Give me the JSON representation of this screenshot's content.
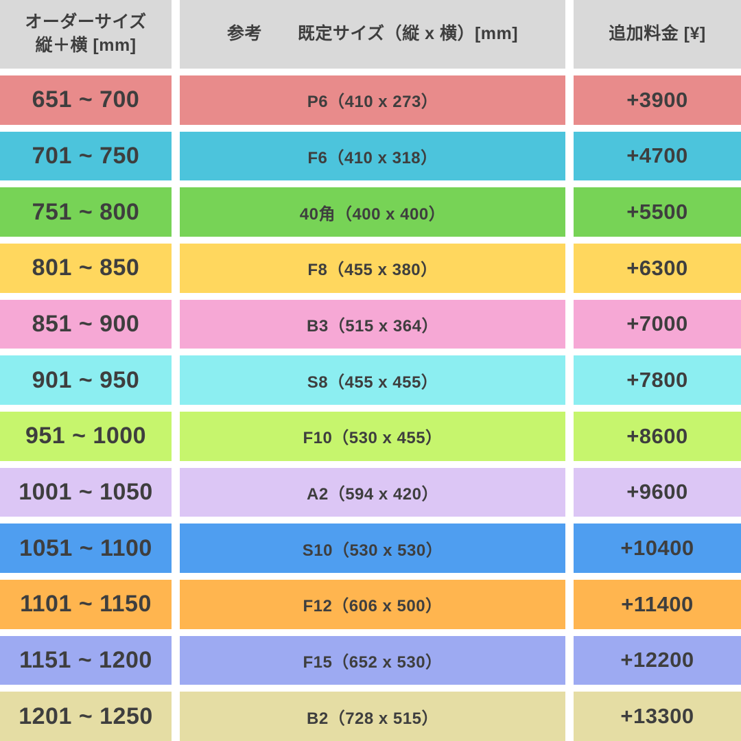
{
  "header": {
    "col1_line1": "オーダーサイズ",
    "col1_line2": "縦＋横 [mm]",
    "col2_ref": "参考",
    "col2_main": "既定サイズ（縦 x 横）[mm]",
    "col3": "追加料金 [¥]"
  },
  "rows": [
    {
      "range": "651 ~ 700",
      "size": "P6（410 x 273）",
      "fee": "+3900",
      "color": "#e88b8b"
    },
    {
      "range": "701 ~ 750",
      "size": "F6（410 x 318）",
      "fee": "+4700",
      "color": "#4cc4dc"
    },
    {
      "range": "751 ~ 800",
      "size": "40角（400 x 400）",
      "fee": "+5500",
      "color": "#77d356"
    },
    {
      "range": "801 ~ 850",
      "size": "F8（455 x 380）",
      "fee": "+6300",
      "color": "#ffd75e"
    },
    {
      "range": "851 ~ 900",
      "size": "B3（515 x 364）",
      "fee": "+7000",
      "color": "#f6a8d5"
    },
    {
      "range": "901 ~ 950",
      "size": "S8（455 x 455）",
      "fee": "+7800",
      "color": "#8ceef1"
    },
    {
      "range": "951 ~ 1000",
      "size": "F10（530 x 455）",
      "fee": "+8600",
      "color": "#c6f56d"
    },
    {
      "range": "1001 ~ 1050",
      "size": "A2（594 x 420）",
      "fee": "+9600",
      "color": "#dcc6f5"
    },
    {
      "range": "1051 ~ 1100",
      "size": "S10（530 x 530）",
      "fee": "+10400",
      "color": "#4f9ef0"
    },
    {
      "range": "1101 ~ 1150",
      "size": "F12（606 x 500）",
      "fee": "+11400",
      "color": "#ffb54f"
    },
    {
      "range": "1151 ~ 1200",
      "size": "F15（652 x 530）",
      "fee": "+12200",
      "color": "#9daaf2"
    },
    {
      "range": "1201 ~ 1250",
      "size": "B2（728 x 515）",
      "fee": "+13300",
      "color": "#e5dda4"
    }
  ],
  "colors": {
    "header_bg": "#d9d9d9",
    "text": "#3e3e3e",
    "gap": "#ffffff"
  },
  "chart_data": {
    "type": "table",
    "title": "",
    "columns": [
      "オーダーサイズ 縦＋横 [mm]",
      "参考 既定サイズ（縦 x 横）[mm]",
      "追加料金 [¥]"
    ],
    "rows": [
      [
        "651 ~ 700",
        "P6（410 x 273）",
        "+3900"
      ],
      [
        "701 ~ 750",
        "F6（410 x 318）",
        "+4700"
      ],
      [
        "751 ~ 800",
        "40角（400 x 400）",
        "+5500"
      ],
      [
        "801 ~ 850",
        "F8（455 x 380）",
        "+6300"
      ],
      [
        "851 ~ 900",
        "B3（515 x 364）",
        "+7000"
      ],
      [
        "901 ~ 950",
        "S8（455 x 455）",
        "+7800"
      ],
      [
        "951 ~ 1000",
        "F10（530 x 455）",
        "+8600"
      ],
      [
        "1001 ~ 1050",
        "A2（594 x 420）",
        "+9600"
      ],
      [
        "1051 ~ 1100",
        "S10（530 x 530）",
        "+10400"
      ],
      [
        "1101 ~ 1150",
        "F12（606 x 500）",
        "+11400"
      ],
      [
        "1151 ~ 1200",
        "F15（652 x 530）",
        "+12200"
      ],
      [
        "1201 ~ 1250",
        "B2（728 x 515）",
        "+13300"
      ]
    ]
  }
}
